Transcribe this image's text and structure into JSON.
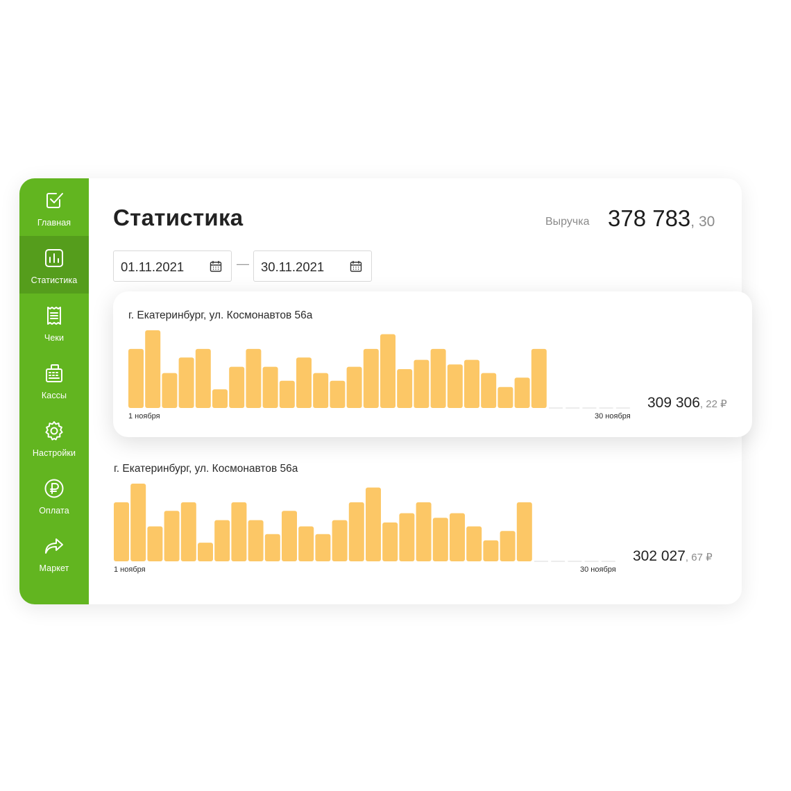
{
  "sidebar": {
    "items": [
      {
        "label": "Главная",
        "icon": "checkbox-icon",
        "active": false
      },
      {
        "label": "Статистика",
        "icon": "bar-chart-icon",
        "active": true
      },
      {
        "label": "Чеки",
        "icon": "receipt-icon",
        "active": false
      },
      {
        "label": "Кассы",
        "icon": "cash-register-icon",
        "active": false
      },
      {
        "label": "Настройки",
        "icon": "gear-icon",
        "active": false
      },
      {
        "label": "Оплата",
        "icon": "ruble-icon",
        "active": false
      },
      {
        "label": "Маркет",
        "icon": "forward-arrow-icon",
        "active": false
      }
    ]
  },
  "header": {
    "title": "Статистика",
    "revenue_label": "Выручка",
    "revenue_main": "378 783",
    "revenue_frac": ", 30"
  },
  "filters": {
    "date_from": "01.11.2021",
    "date_separator": "—",
    "date_to": "30.11.2021"
  },
  "colors": {
    "sidebar": "#62b520",
    "sidebar_active": "#559d1c",
    "bar": "#fcc766",
    "empty_day": "#d9d9d9"
  },
  "stores": [
    {
      "name": "г. Екатеринбург, ул. Космонавтов 56а",
      "total_main": "309 306",
      "total_frac": ", 22 ₽",
      "x_start_label": "1 ноября",
      "x_end_label": "30 ноября",
      "chart_data": {
        "type": "bar",
        "days": 30,
        "values": [
          76,
          100,
          45,
          65,
          76,
          24,
          53,
          76,
          53,
          35,
          65,
          45,
          35,
          53,
          76,
          95,
          50,
          62,
          76,
          56,
          62,
          45,
          27,
          39,
          76,
          0,
          0,
          0,
          0,
          0
        ],
        "ylim": [
          0,
          100
        ]
      }
    },
    {
      "name": "г. Екатеринбург, ул. Космонавтов 56а",
      "total_main": "302 027",
      "total_frac": ", 67 ₽",
      "x_start_label": "1 ноября",
      "x_end_label": "30 ноября",
      "chart_data": {
        "type": "bar",
        "days": 30,
        "values": [
          76,
          100,
          45,
          65,
          76,
          24,
          53,
          76,
          53,
          35,
          65,
          45,
          35,
          53,
          76,
          95,
          50,
          62,
          76,
          56,
          62,
          45,
          27,
          39,
          76,
          0,
          0,
          0,
          0,
          0
        ],
        "ylim": [
          0,
          100
        ]
      }
    }
  ]
}
